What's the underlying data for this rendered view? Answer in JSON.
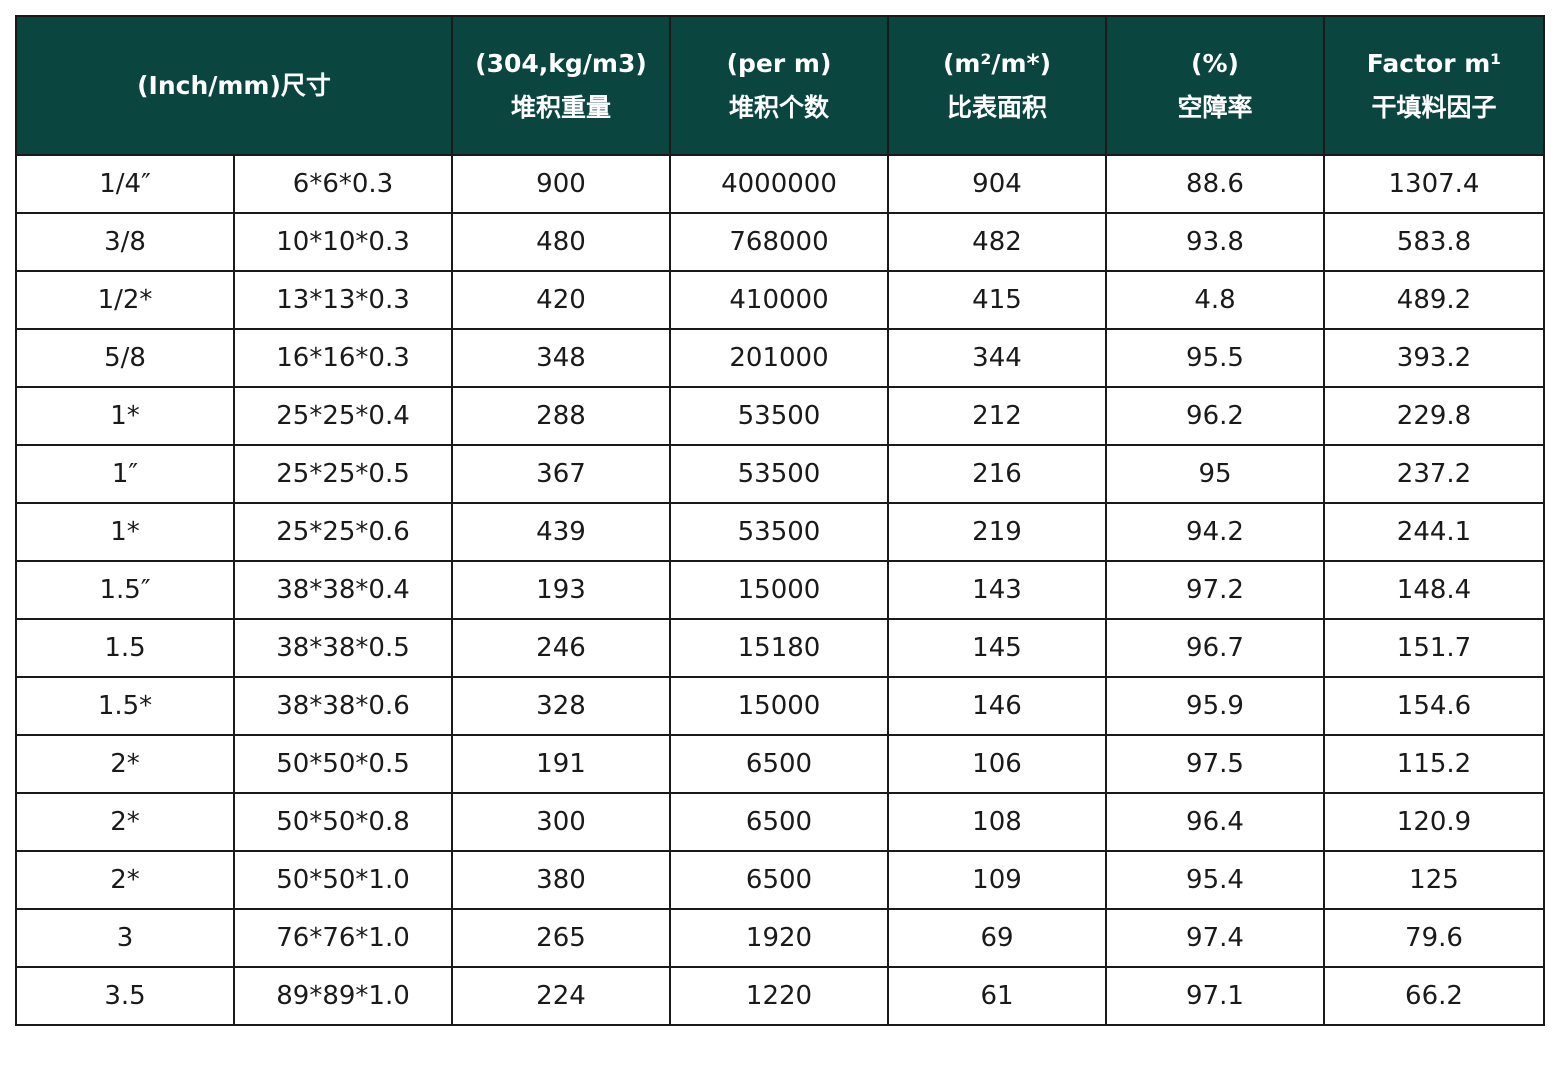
{
  "table": {
    "header": {
      "size": "(Inch/mm)尺寸",
      "columns": [
        {
          "line1": "(304,kg/m3)",
          "line2": "堆积重量"
        },
        {
          "line1": "(per m)",
          "line2": "堆积个数"
        },
        {
          "line1": "(m²/m*)",
          "line2": "比表面积"
        },
        {
          "line1": "(%)",
          "line2": "空障率"
        },
        {
          "line1": "Factor  m¹",
          "line2": "干填料因子"
        }
      ]
    },
    "rows": [
      [
        "1/4″",
        "6*6*0.3",
        "900",
        "4000000",
        "904",
        "88.6",
        "1307.4"
      ],
      [
        "3/8",
        "10*10*0.3",
        "480",
        "768000",
        "482",
        "93.8",
        "583.8"
      ],
      [
        "1/2*",
        "13*13*0.3",
        "420",
        "410000",
        "415",
        "4.8",
        "489.2"
      ],
      [
        "5/8",
        "16*16*0.3",
        "348",
        "201000",
        "344",
        "95.5",
        "393.2"
      ],
      [
        "1*",
        "25*25*0.4",
        "288",
        "53500",
        "212",
        "96.2",
        "229.8"
      ],
      [
        "1″",
        "25*25*0.5",
        "367",
        "53500",
        "216",
        "95",
        "237.2"
      ],
      [
        "1*",
        "25*25*0.6",
        "439",
        "53500",
        "219",
        "94.2",
        "244.1"
      ],
      [
        "1.5″",
        "38*38*0.4",
        "193",
        "15000",
        "143",
        "97.2",
        "148.4"
      ],
      [
        "1.5",
        "38*38*0.5",
        "246",
        "15180",
        "145",
        "96.7",
        "151.7"
      ],
      [
        "1.5*",
        "38*38*0.6",
        "328",
        "15000",
        "146",
        "95.9",
        "154.6"
      ],
      [
        "2*",
        "50*50*0.5",
        "191",
        "6500",
        "106",
        "97.5",
        "115.2"
      ],
      [
        "2*",
        "50*50*0.8",
        "300",
        "6500",
        "108",
        "96.4",
        "120.9"
      ],
      [
        "2*",
        "50*50*1.0",
        "380",
        "6500",
        "109",
        "95.4",
        "125"
      ],
      [
        "3",
        "76*76*1.0",
        "265",
        "1920",
        "69",
        "97.4",
        "79.6"
      ],
      [
        "3.5",
        "89*89*1.0",
        "224",
        "1220",
        "61",
        "97.1",
        "66.2"
      ]
    ]
  }
}
